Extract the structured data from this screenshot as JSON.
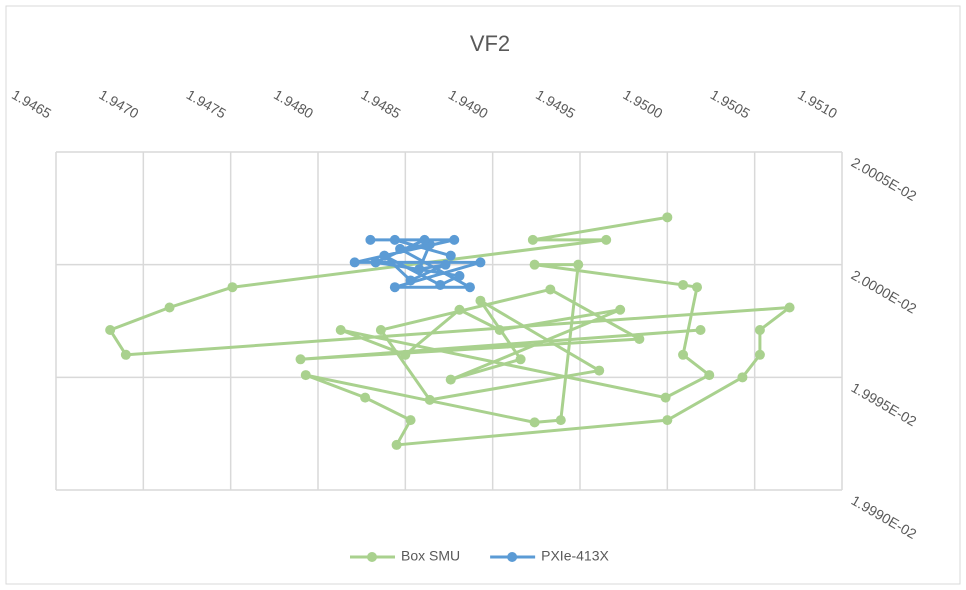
{
  "chart_data": {
    "type": "scatter",
    "title": "VF2",
    "xlim": [
      1.9465,
      1.951
    ],
    "xticks": [
      1.9465,
      {
        "value": 1.947,
        "label": "1.9470"
      },
      1.9475,
      {
        "value": 1.948,
        "label": "1.9480"
      },
      1.9485,
      {
        "value": 1.949,
        "label": "1.9490"
      },
      1.9495,
      {
        "value": 1.95,
        "label": "1.9500"
      },
      1.9505,
      {
        "value": 1.951,
        "label": "1.9510"
      }
    ],
    "ylim": [
      0.01999,
      0.020005
    ],
    "yticks": [
      {
        "value": 0.01999,
        "label": "1.9990E-02"
      },
      {
        "value": 0.019995,
        "label": "1.9995E-02"
      },
      {
        "value": 0.02,
        "label": "2.0000E-02"
      },
      {
        "value": 0.020005,
        "label": "2.0005E-02"
      }
    ],
    "grid": true,
    "legend": "bottom",
    "series": [
      {
        "name": "Box SMU",
        "color": "#a9d18e",
        "x": [
          1.95,
          1.94923,
          1.94965,
          1.94751,
          1.94715,
          1.94681,
          1.9469,
          1.9507,
          1.95053,
          1.95053,
          1.95043,
          1.95,
          1.94845,
          1.94853,
          1.94827,
          1.94793,
          1.94924,
          1.94939,
          1.94949,
          1.94924,
          1.95009,
          1.95017,
          1.95009,
          1.95024,
          1.94999,
          1.94813,
          1.9485,
          1.94881,
          1.94904,
          1.94973,
          1.94876,
          1.94916,
          1.94893,
          1.94961,
          1.94864,
          1.94836,
          1.94933,
          1.94984,
          1.9479,
          1.95019
        ],
        "values": [
          0.0200021,
          0.0200011,
          0.0200011,
          0.019999,
          0.0199981,
          0.0199971,
          0.019996,
          0.0199981,
          0.0199971,
          0.019996,
          0.019995,
          0.0199931,
          0.019992,
          0.0199931,
          0.0199941,
          0.0199951,
          0.019993,
          0.0199931,
          0.02,
          0.02,
          0.0199991,
          0.019999,
          0.019996,
          0.0199951,
          0.0199941,
          0.0199971,
          0.019996,
          0.019998,
          0.0199971,
          0.019998,
          0.0199949,
          0.0199958,
          0.0199984,
          0.0199953,
          0.019994,
          0.0199971,
          0.0199989,
          0.0199967,
          0.0199958,
          0.0199971
        ]
      },
      {
        "name": "PXIe-413X",
        "color": "#5b9bd5",
        "x": [
          1.9483,
          1.94878,
          1.94821,
          1.94893,
          1.94844,
          1.94887,
          1.94847,
          1.94864,
          1.94858,
          1.94873,
          1.94853,
          1.94838,
          1.9487,
          1.94881,
          1.94833,
          1.94861,
          1.94844,
          1.94876
        ],
        "values": [
          0.0200011,
          0.0200011,
          0.0200001,
          0.0200001,
          0.019999,
          0.019999,
          0.0200007,
          0.0200009,
          0.0199998,
          0.02,
          0.0199993,
          0.0200004,
          0.0199991,
          0.0199995,
          0.0200001,
          0.0200011,
          0.0200011,
          0.0200004
        ]
      }
    ]
  }
}
